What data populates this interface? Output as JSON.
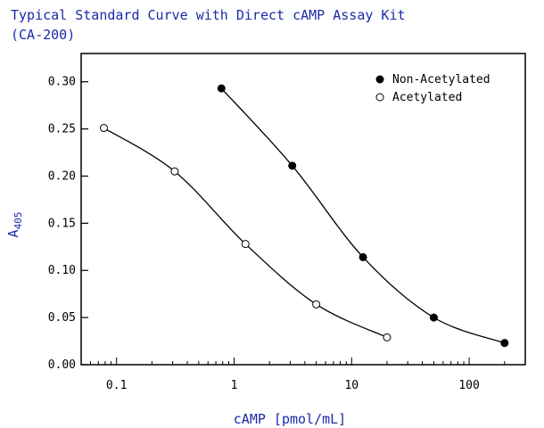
{
  "chart_data": {
    "type": "line",
    "title": "Typical Standard Curve with Direct cAMP Assay Kit",
    "subtitle": "(CA-200)",
    "xlabel": "cAMP [pmol/mL]",
    "ylabel_main": "A",
    "ylabel_sub": "405",
    "x_scale": "log",
    "xlim": [
      0.05,
      300
    ],
    "ylim": [
      0,
      0.33
    ],
    "x_ticks": [
      0.1,
      1,
      10,
      100
    ],
    "x_tick_labels": [
      "0.1",
      "1",
      "10",
      "100"
    ],
    "y_ticks": [
      0,
      0.05,
      0.1,
      0.15,
      0.2,
      0.25,
      0.3
    ],
    "y_tick_labels": [
      "0.00",
      "0.05",
      "0.10",
      "0.15",
      "0.20",
      "0.25",
      "0.30"
    ],
    "grid": false,
    "legend_position": "top-right",
    "series": [
      {
        "name": "Non-Acetylated",
        "marker": "filled-circle",
        "x": [
          0.78,
          3.125,
          12.5,
          50,
          200
        ],
        "y": [
          0.293,
          0.211,
          0.114,
          0.05,
          0.023
        ]
      },
      {
        "name": "Acetylated",
        "marker": "open-circle",
        "x": [
          0.078,
          0.3125,
          1.25,
          5,
          20
        ],
        "y": [
          0.251,
          0.205,
          0.128,
          0.064,
          0.029
        ]
      }
    ],
    "colors": {
      "title": "#1a2aa8",
      "axis": "#000000",
      "curve": "#000000"
    }
  }
}
